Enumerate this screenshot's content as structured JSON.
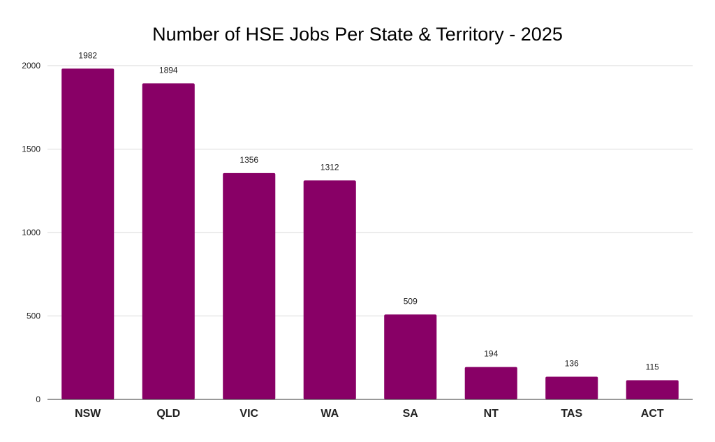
{
  "chart_data": {
    "type": "bar",
    "title": "Number of HSE Jobs Per State & Territory - 2025",
    "xlabel": "",
    "ylabel": "",
    "categories": [
      "NSW",
      "QLD",
      "VIC",
      "WA",
      "SA",
      "NT",
      "TAS",
      "ACT"
    ],
    "values": [
      1982,
      1894,
      1356,
      1312,
      509,
      194,
      136,
      115
    ],
    "ylim": [
      0,
      2000
    ],
    "yticks": [
      0,
      500,
      1000,
      1500,
      2000
    ],
    "grid": true,
    "legend": "none",
    "bar_color": "#880066",
    "data_labels": true
  }
}
